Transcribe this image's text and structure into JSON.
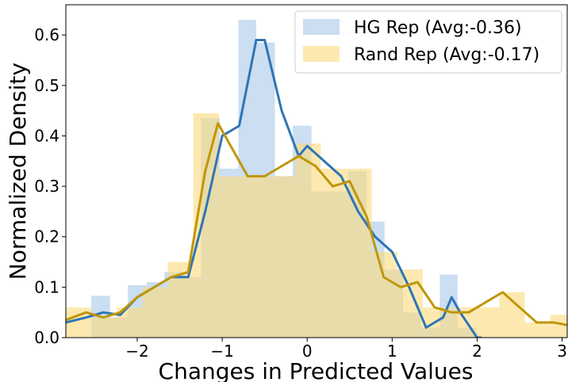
{
  "chart_data": {
    "type": "histogram",
    "xlabel": "Changes in Predicted Values",
    "ylabel": "Normalized Density",
    "xlim": [
      -2.84,
      3.06
    ],
    "ylim": [
      0,
      0.66
    ],
    "xticks": [
      {
        "value": -2,
        "label": "−2"
      },
      {
        "value": -1,
        "label": "−1"
      },
      0,
      1,
      2,
      3
    ],
    "yticks": [
      {
        "value": 0,
        "label": "0.0"
      },
      0.1,
      0.2,
      0.3,
      0.4,
      0.5,
      0.6
    ],
    "legend": "upper right",
    "series": [
      {
        "name": "HG Rep (Avg:-0.36)",
        "color": "#a9c8ea",
        "line_color": "#2e75b6",
        "bins": [
          -2.54,
          -2.32,
          -2.11,
          -1.89,
          -1.68,
          -1.46,
          -1.25,
          -1.03,
          -0.81,
          -0.6,
          -0.38,
          -0.17,
          0.05,
          0.26,
          0.48,
          0.7,
          0.91,
          1.13,
          1.34,
          1.56,
          1.77,
          1.99
        ],
        "values": [
          0.083,
          0.04,
          0.104,
          0.11,
          0.13,
          0.12,
          0.435,
          0.335,
          0.63,
          0.585,
          0.32,
          0.42,
          0.29,
          0.29,
          0.33,
          0.23,
          0.135,
          0.05,
          0.02,
          0.125,
          0.02
        ],
        "density": {
          "x": [
            -2.84,
            -2.6,
            -2.4,
            -2.2,
            -2.0,
            -1.8,
            -1.6,
            -1.4,
            -1.2,
            -1.0,
            -0.8,
            -0.6,
            -0.5,
            -0.3,
            -0.1,
            0,
            0.2,
            0.4,
            0.6,
            0.8,
            1.0,
            1.2,
            1.4,
            1.6,
            1.7,
            1.8,
            2.0,
            2.05
          ],
          "values": [
            0.03,
            0.04,
            0.05,
            0.045,
            0.08,
            0.1,
            0.12,
            0.12,
            0.25,
            0.4,
            0.42,
            0.59,
            0.59,
            0.45,
            0.36,
            0.38,
            0.35,
            0.32,
            0.25,
            0.2,
            0.17,
            0.1,
            0.02,
            0.04,
            0.08,
            0.05,
            0.0,
            0.0
          ]
        }
      },
      {
        "name": "Rand Rep (Avg:-0.17)",
        "color": "#fbdb7c",
        "line_color": "#bf960a",
        "bins": [
          -2.84,
          -2.54,
          -2.24,
          -1.94,
          -1.64,
          -1.34,
          -1.04,
          -0.74,
          -0.44,
          -0.14,
          0.16,
          0.46,
          0.76,
          1.06,
          1.36,
          1.66,
          1.96,
          2.26,
          2.56,
          2.86,
          3.16
        ],
        "values": [
          0.06,
          0.04,
          0.06,
          0.1,
          0.15,
          0.445,
          0.32,
          0.32,
          0.32,
          0.385,
          0.335,
          0.335,
          0.17,
          0.135,
          0.06,
          0.06,
          0.06,
          0.09,
          0.03,
          0.045
        ],
        "density": {
          "x": [
            -2.84,
            -2.6,
            -2.4,
            -2.2,
            -2.0,
            -1.8,
            -1.6,
            -1.4,
            -1.2,
            -1.05,
            -0.9,
            -0.7,
            -0.5,
            -0.3,
            -0.1,
            0.1,
            0.3,
            0.5,
            0.7,
            0.9,
            1.1,
            1.3,
            1.5,
            1.7,
            1.9,
            2.1,
            2.3,
            2.5,
            2.7,
            2.9,
            3.06
          ],
          "values": [
            0.035,
            0.05,
            0.04,
            0.05,
            0.08,
            0.1,
            0.12,
            0.13,
            0.33,
            0.425,
            0.38,
            0.32,
            0.32,
            0.34,
            0.36,
            0.34,
            0.3,
            0.31,
            0.24,
            0.12,
            0.1,
            0.11,
            0.06,
            0.05,
            0.05,
            0.07,
            0.09,
            0.06,
            0.03,
            0.03,
            0.025
          ]
        }
      }
    ]
  }
}
